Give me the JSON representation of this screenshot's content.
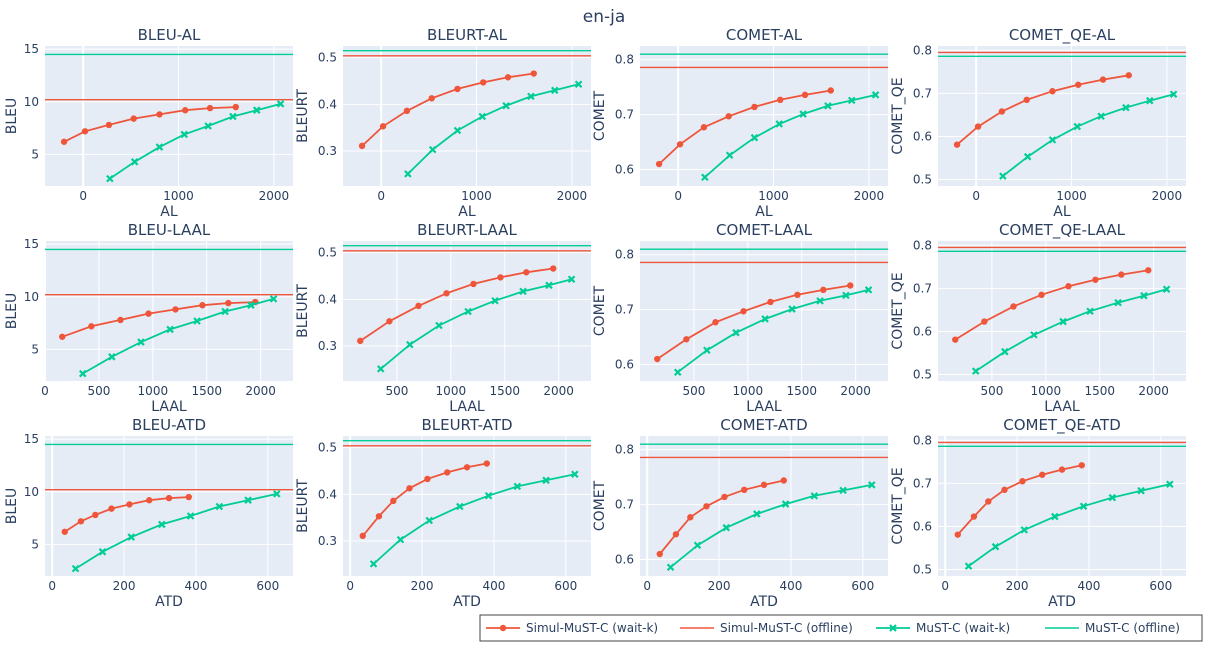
{
  "title": "en-ja",
  "colors": {
    "simul_waitk": "#EF553B",
    "simul_offline": "#EF553B",
    "must_waitk": "#00CC96",
    "must_offline": "#00CC96",
    "plot_bg": "#E5ECF6",
    "grid": "#ffffff",
    "text": "#2a3f5f"
  },
  "legend": {
    "placement": "bottom-right",
    "items": [
      {
        "label": "Simul-MuST-C (wait-k)",
        "style": "line-marker",
        "marker": "circle",
        "color": "#EF553B"
      },
      {
        "label": "Simul-MuST-C (offline)",
        "style": "line",
        "color": "#EF553B"
      },
      {
        "label": "MuST-C (wait-k)",
        "style": "line-marker",
        "marker": "x",
        "color": "#00CC96"
      },
      {
        "label": "MuST-C (offline)",
        "style": "line",
        "color": "#00CC96"
      }
    ]
  },
  "chart_data": [
    {
      "type": "line",
      "title": "BLEU-AL",
      "xlabel": "AL",
      "ylabel": "BLEU",
      "xlim": [
        -400,
        2200
      ],
      "ylim": [
        2,
        15.3
      ],
      "xticks": [
        0,
        1000,
        2000
      ],
      "yticks": [
        5,
        10,
        15
      ],
      "series": [
        {
          "name": "Simul-MuST-C (wait-k)",
          "x": [
            -200,
            20,
            270,
            530,
            800,
            1070,
            1330,
            1600
          ],
          "y": [
            6.2,
            7.2,
            7.8,
            8.4,
            8.8,
            9.2,
            9.4,
            9.5
          ]
        },
        {
          "name": "Simul-MuST-C (offline)",
          "offline": 10.2
        },
        {
          "name": "MuST-C (wait-k)",
          "x": [
            280,
            540,
            800,
            1060,
            1310,
            1570,
            1820,
            2070
          ],
          "y": [
            2.7,
            4.3,
            5.7,
            6.9,
            7.7,
            8.6,
            9.2,
            9.8
          ]
        },
        {
          "name": "MuST-C (offline)",
          "offline": 14.5
        }
      ]
    },
    {
      "type": "line",
      "title": "BLEURT-AL",
      "xlabel": "AL",
      "ylabel": "BLEURT",
      "xlim": [
        -400,
        2200
      ],
      "ylim": [
        0.225,
        0.525
      ],
      "xticks": [
        0,
        1000,
        2000
      ],
      "yticks": [
        0.3,
        0.4,
        0.5
      ],
      "series": [
        {
          "name": "Simul-MuST-C (wait-k)",
          "x": [
            -200,
            20,
            270,
            530,
            800,
            1070,
            1330,
            1600
          ],
          "y": [
            0.311,
            0.353,
            0.386,
            0.413,
            0.433,
            0.447,
            0.458,
            0.466
          ]
        },
        {
          "name": "Simul-MuST-C (offline)",
          "offline": 0.504
        },
        {
          "name": "MuST-C (wait-k)",
          "x": [
            280,
            540,
            800,
            1060,
            1310,
            1570,
            1820,
            2070
          ],
          "y": [
            0.251,
            0.303,
            0.344,
            0.374,
            0.397,
            0.417,
            0.43,
            0.443
          ]
        },
        {
          "name": "MuST-C (offline)",
          "offline": 0.515
        }
      ]
    },
    {
      "type": "line",
      "title": "COMET-AL",
      "xlabel": "AL",
      "ylabel": "COMET",
      "xlim": [
        -400,
        2200
      ],
      "ylim": [
        0.57,
        0.825
      ],
      "xticks": [
        0,
        1000,
        2000
      ],
      "yticks": [
        0.6,
        0.7,
        0.8
      ],
      "series": [
        {
          "name": "Simul-MuST-C (wait-k)",
          "x": [
            -200,
            20,
            270,
            530,
            800,
            1070,
            1330,
            1600
          ],
          "y": [
            0.61,
            0.646,
            0.677,
            0.697,
            0.714,
            0.727,
            0.736,
            0.744
          ]
        },
        {
          "name": "Simul-MuST-C (offline)",
          "offline": 0.786
        },
        {
          "name": "MuST-C (wait-k)",
          "x": [
            280,
            540,
            800,
            1060,
            1310,
            1570,
            1820,
            2070
          ],
          "y": [
            0.586,
            0.626,
            0.658,
            0.683,
            0.701,
            0.716,
            0.726,
            0.736
          ]
        },
        {
          "name": "MuST-C (offline)",
          "offline": 0.81
        }
      ]
    },
    {
      "type": "line",
      "title": "COMET_QE-AL",
      "xlabel": "AL",
      "ylabel": "COMET_QE",
      "xlim": [
        -400,
        2200
      ],
      "ylim": [
        0.485,
        0.81
      ],
      "xticks": [
        0,
        1000,
        2000
      ],
      "yticks": [
        0.5,
        0.6,
        0.7,
        0.8
      ],
      "series": [
        {
          "name": "Simul-MuST-C (wait-k)",
          "x": [
            -200,
            20,
            270,
            530,
            800,
            1070,
            1330,
            1600
          ],
          "y": [
            0.581,
            0.623,
            0.658,
            0.685,
            0.705,
            0.72,
            0.732,
            0.742
          ]
        },
        {
          "name": "Simul-MuST-C (offline)",
          "offline": 0.795
        },
        {
          "name": "MuST-C (wait-k)",
          "x": [
            280,
            540,
            800,
            1060,
            1310,
            1570,
            1820,
            2070
          ],
          "y": [
            0.508,
            0.553,
            0.592,
            0.623,
            0.647,
            0.667,
            0.683,
            0.698
          ]
        },
        {
          "name": "MuST-C (offline)",
          "offline": 0.786
        }
      ]
    },
    {
      "type": "line",
      "title": "BLEU-LAAL",
      "xlabel": "LAAL",
      "ylabel": "BLEU",
      "xlim": [
        0,
        2300
      ],
      "ylim": [
        2,
        15.3
      ],
      "xticks": [
        0,
        500,
        1000,
        1500,
        2000
      ],
      "yticks": [
        5,
        10,
        15
      ],
      "series": [
        {
          "name": "Simul-MuST-C (wait-k)",
          "x": [
            160,
            430,
            700,
            960,
            1210,
            1460,
            1700,
            1950
          ],
          "y": [
            6.2,
            7.2,
            7.8,
            8.4,
            8.8,
            9.2,
            9.4,
            9.5
          ]
        },
        {
          "name": "Simul-MuST-C (offline)",
          "offline": 10.2
        },
        {
          "name": "MuST-C (wait-k)",
          "x": [
            350,
            620,
            890,
            1160,
            1410,
            1670,
            1910,
            2120
          ],
          "y": [
            2.7,
            4.3,
            5.7,
            6.9,
            7.7,
            8.6,
            9.2,
            9.8
          ]
        },
        {
          "name": "MuST-C (offline)",
          "offline": 14.5
        }
      ]
    },
    {
      "type": "line",
      "title": "BLEURT-LAAL",
      "xlabel": "LAAL",
      "ylabel": "BLEURT",
      "xlim": [
        0,
        2300
      ],
      "ylim": [
        0.225,
        0.525
      ],
      "xticks": [
        500,
        1000,
        1500,
        2000
      ],
      "yticks": [
        0.3,
        0.4,
        0.5
      ],
      "series": [
        {
          "name": "Simul-MuST-C (wait-k)",
          "x": [
            160,
            430,
            700,
            960,
            1210,
            1460,
            1700,
            1950
          ],
          "y": [
            0.311,
            0.353,
            0.386,
            0.413,
            0.433,
            0.447,
            0.458,
            0.466
          ]
        },
        {
          "name": "Simul-MuST-C (offline)",
          "offline": 0.504
        },
        {
          "name": "MuST-C (wait-k)",
          "x": [
            350,
            620,
            890,
            1160,
            1410,
            1670,
            1910,
            2120
          ],
          "y": [
            0.251,
            0.303,
            0.344,
            0.374,
            0.397,
            0.417,
            0.43,
            0.443
          ]
        },
        {
          "name": "MuST-C (offline)",
          "offline": 0.515
        }
      ]
    },
    {
      "type": "line",
      "title": "COMET-LAAL",
      "xlabel": "LAAL",
      "ylabel": "COMET",
      "xlim": [
        0,
        2300
      ],
      "ylim": [
        0.57,
        0.825
      ],
      "xticks": [
        500,
        1000,
        1500,
        2000
      ],
      "yticks": [
        0.6,
        0.7,
        0.8
      ],
      "series": [
        {
          "name": "Simul-MuST-C (wait-k)",
          "x": [
            160,
            430,
            700,
            960,
            1210,
            1460,
            1700,
            1950
          ],
          "y": [
            0.61,
            0.646,
            0.677,
            0.697,
            0.714,
            0.727,
            0.736,
            0.744
          ]
        },
        {
          "name": "Simul-MuST-C (offline)",
          "offline": 0.786
        },
        {
          "name": "MuST-C (wait-k)",
          "x": [
            350,
            620,
            890,
            1160,
            1410,
            1670,
            1910,
            2120
          ],
          "y": [
            0.586,
            0.626,
            0.658,
            0.683,
            0.701,
            0.716,
            0.726,
            0.736
          ]
        },
        {
          "name": "MuST-C (offline)",
          "offline": 0.81
        }
      ]
    },
    {
      "type": "line",
      "title": "COMET_QE-LAAL",
      "xlabel": "LAAL",
      "ylabel": "COMET_QE",
      "xlim": [
        0,
        2300
      ],
      "ylim": [
        0.485,
        0.81
      ],
      "xticks": [
        500,
        1000,
        1500,
        2000
      ],
      "yticks": [
        0.5,
        0.6,
        0.7,
        0.8
      ],
      "series": [
        {
          "name": "Simul-MuST-C (wait-k)",
          "x": [
            160,
            430,
            700,
            960,
            1210,
            1460,
            1700,
            1950
          ],
          "y": [
            0.581,
            0.623,
            0.658,
            0.685,
            0.705,
            0.72,
            0.732,
            0.742
          ]
        },
        {
          "name": "Simul-MuST-C (offline)",
          "offline": 0.795
        },
        {
          "name": "MuST-C (wait-k)",
          "x": [
            350,
            620,
            890,
            1160,
            1410,
            1670,
            1910,
            2120
          ],
          "y": [
            0.508,
            0.553,
            0.592,
            0.623,
            0.647,
            0.667,
            0.683,
            0.698
          ]
        },
        {
          "name": "MuST-C (offline)",
          "offline": 0.786
        }
      ]
    },
    {
      "type": "line",
      "title": "BLEU-ATD",
      "xlabel": "ATD",
      "ylabel": "BLEU",
      "xlim": [
        -20,
        670
      ],
      "ylim": [
        2,
        15.3
      ],
      "xticks": [
        0,
        200,
        400,
        600
      ],
      "yticks": [
        5,
        10,
        15
      ],
      "series": [
        {
          "name": "Simul-MuST-C (wait-k)",
          "x": [
            35,
            80,
            120,
            165,
            215,
            270,
            325,
            380
          ],
          "y": [
            6.2,
            7.2,
            7.8,
            8.4,
            8.8,
            9.2,
            9.4,
            9.5
          ]
        },
        {
          "name": "Simul-MuST-C (offline)",
          "offline": 10.2
        },
        {
          "name": "MuST-C (wait-k)",
          "x": [
            65,
            140,
            220,
            305,
            385,
            465,
            545,
            625
          ],
          "y": [
            2.7,
            4.3,
            5.7,
            6.9,
            7.7,
            8.6,
            9.2,
            9.8
          ]
        },
        {
          "name": "MuST-C (offline)",
          "offline": 14.5
        }
      ]
    },
    {
      "type": "line",
      "title": "BLEURT-ATD",
      "xlabel": "ATD",
      "ylabel": "BLEURT",
      "xlim": [
        -20,
        670
      ],
      "ylim": [
        0.225,
        0.525
      ],
      "xticks": [
        0,
        200,
        400,
        600
      ],
      "yticks": [
        0.3,
        0.4,
        0.5
      ],
      "series": [
        {
          "name": "Simul-MuST-C (wait-k)",
          "x": [
            35,
            80,
            120,
            165,
            215,
            270,
            325,
            380
          ],
          "y": [
            0.311,
            0.353,
            0.386,
            0.413,
            0.433,
            0.447,
            0.458,
            0.466
          ]
        },
        {
          "name": "Simul-MuST-C (offline)",
          "offline": 0.504
        },
        {
          "name": "MuST-C (wait-k)",
          "x": [
            65,
            140,
            220,
            305,
            385,
            465,
            545,
            625
          ],
          "y": [
            0.251,
            0.303,
            0.344,
            0.374,
            0.397,
            0.417,
            0.43,
            0.443
          ]
        },
        {
          "name": "MuST-C (offline)",
          "offline": 0.515
        }
      ]
    },
    {
      "type": "line",
      "title": "COMET-ATD",
      "xlabel": "ATD",
      "ylabel": "COMET",
      "xlim": [
        -20,
        670
      ],
      "ylim": [
        0.57,
        0.825
      ],
      "xticks": [
        0,
        200,
        400,
        600
      ],
      "yticks": [
        0.6,
        0.7,
        0.8
      ],
      "series": [
        {
          "name": "Simul-MuST-C (wait-k)",
          "x": [
            35,
            80,
            120,
            165,
            215,
            270,
            325,
            380
          ],
          "y": [
            0.61,
            0.646,
            0.677,
            0.697,
            0.714,
            0.727,
            0.736,
            0.744
          ]
        },
        {
          "name": "Simul-MuST-C (offline)",
          "offline": 0.786
        },
        {
          "name": "MuST-C (wait-k)",
          "x": [
            65,
            140,
            220,
            305,
            385,
            465,
            545,
            625
          ],
          "y": [
            0.586,
            0.626,
            0.658,
            0.683,
            0.701,
            0.716,
            0.726,
            0.736
          ]
        },
        {
          "name": "MuST-C (offline)",
          "offline": 0.81
        }
      ]
    },
    {
      "type": "line",
      "title": "COMET_QE-ATD",
      "xlabel": "ATD",
      "ylabel": "COMET_QE",
      "xlim": [
        -20,
        670
      ],
      "ylim": [
        0.485,
        0.81
      ],
      "xticks": [
        0,
        200,
        400,
        600
      ],
      "yticks": [
        0.5,
        0.6,
        0.7,
        0.8
      ],
      "series": [
        {
          "name": "Simul-MuST-C (wait-k)",
          "x": [
            35,
            80,
            120,
            165,
            215,
            270,
            325,
            380
          ],
          "y": [
            0.581,
            0.623,
            0.658,
            0.685,
            0.705,
            0.72,
            0.732,
            0.742
          ]
        },
        {
          "name": "Simul-MuST-C (offline)",
          "offline": 0.795
        },
        {
          "name": "MuST-C (wait-k)",
          "x": [
            65,
            140,
            220,
            305,
            385,
            465,
            545,
            625
          ],
          "y": [
            0.508,
            0.553,
            0.592,
            0.623,
            0.647,
            0.667,
            0.683,
            0.698
          ]
        },
        {
          "name": "MuST-C (offline)",
          "offline": 0.786
        }
      ]
    }
  ]
}
